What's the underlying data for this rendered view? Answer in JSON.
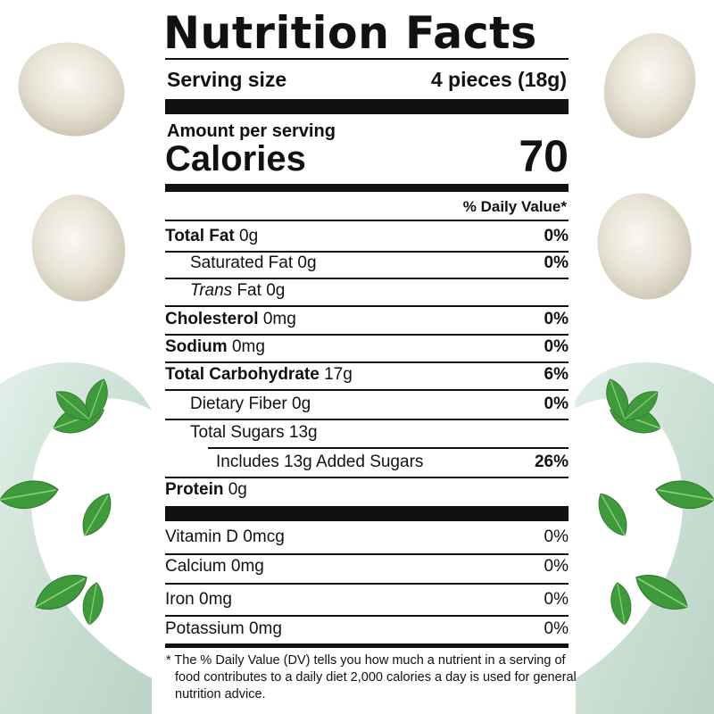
{
  "header": {
    "title": "Nutrition Facts",
    "serving_label": "Serving size",
    "serving_value": "4 pieces (18g)",
    "amount_per_serving": "Amount per serving",
    "calories_label": "Calories",
    "calories_value": "70",
    "dv_header": "% Daily Value*"
  },
  "nutrients": [
    {
      "name": "Total Fat",
      "amount": "0g",
      "dv": "0%"
    },
    {
      "name": "Saturated Fat",
      "amount": "0g",
      "dv": "0%"
    },
    {
      "name_italic": "Trans",
      "name": "Fat",
      "amount": "0g"
    },
    {
      "name": "Cholesterol",
      "amount": "0mg",
      "dv": "0%"
    },
    {
      "name": "Sodium",
      "amount": "0mg",
      "dv": "0%"
    },
    {
      "name": "Total Carbohydrate",
      "amount": "17g",
      "dv": "6%"
    },
    {
      "name": "Dietary Fiber",
      "amount": "0g",
      "dv": "0%"
    },
    {
      "name": "Total Sugars",
      "amount": "13g"
    },
    {
      "name": "Includes 13g Added Sugars",
      "dv": "26%"
    },
    {
      "name": "Protein",
      "amount": "0g"
    }
  ],
  "vitamins": [
    {
      "name": "Vitamin D",
      "amount": "0mcg",
      "dv": "0%"
    },
    {
      "name": "Calcium",
      "amount": "0mg",
      "dv": "0%"
    },
    {
      "name": "Iron",
      "amount": "0mg",
      "dv": "0%"
    },
    {
      "name": "Potassium",
      "amount": "0mg",
      "dv": "0%"
    }
  ],
  "footnote": "* The % Daily Value (DV) tells you how much a nutrient in a serving of food contributes to a daily diet 2,000 calories a day is used for general nutrition advice."
}
